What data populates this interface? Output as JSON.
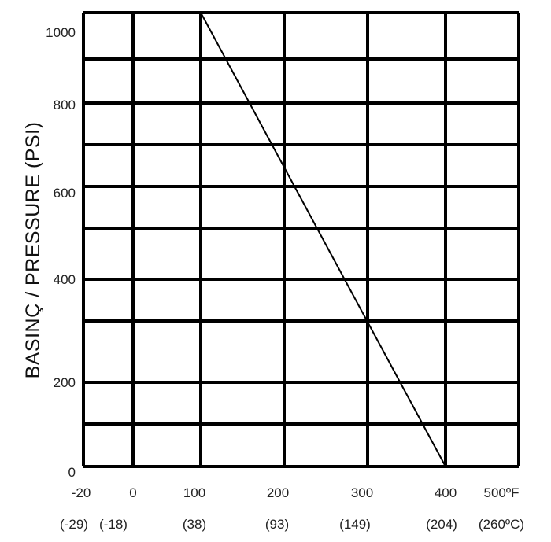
{
  "chart_data": {
    "type": "line",
    "ylabel": "BASINÇ / PRESSURE (PSI)",
    "xlabel": "",
    "x_ticks_f": [
      "-20",
      "0",
      "100",
      "200",
      "300",
      "400",
      "500ºF"
    ],
    "x_ticks_c": [
      "(-29)",
      "(-18)",
      "(38)",
      "(93)",
      "(149)",
      "(204)",
      "(260ºC)"
    ],
    "y_ticks": [
      "0",
      "200",
      "400",
      "600",
      "800",
      "1000"
    ],
    "grid": true,
    "series": [
      {
        "x": [
          100,
          400
        ],
        "y": [
          1050,
          0
        ]
      }
    ]
  }
}
